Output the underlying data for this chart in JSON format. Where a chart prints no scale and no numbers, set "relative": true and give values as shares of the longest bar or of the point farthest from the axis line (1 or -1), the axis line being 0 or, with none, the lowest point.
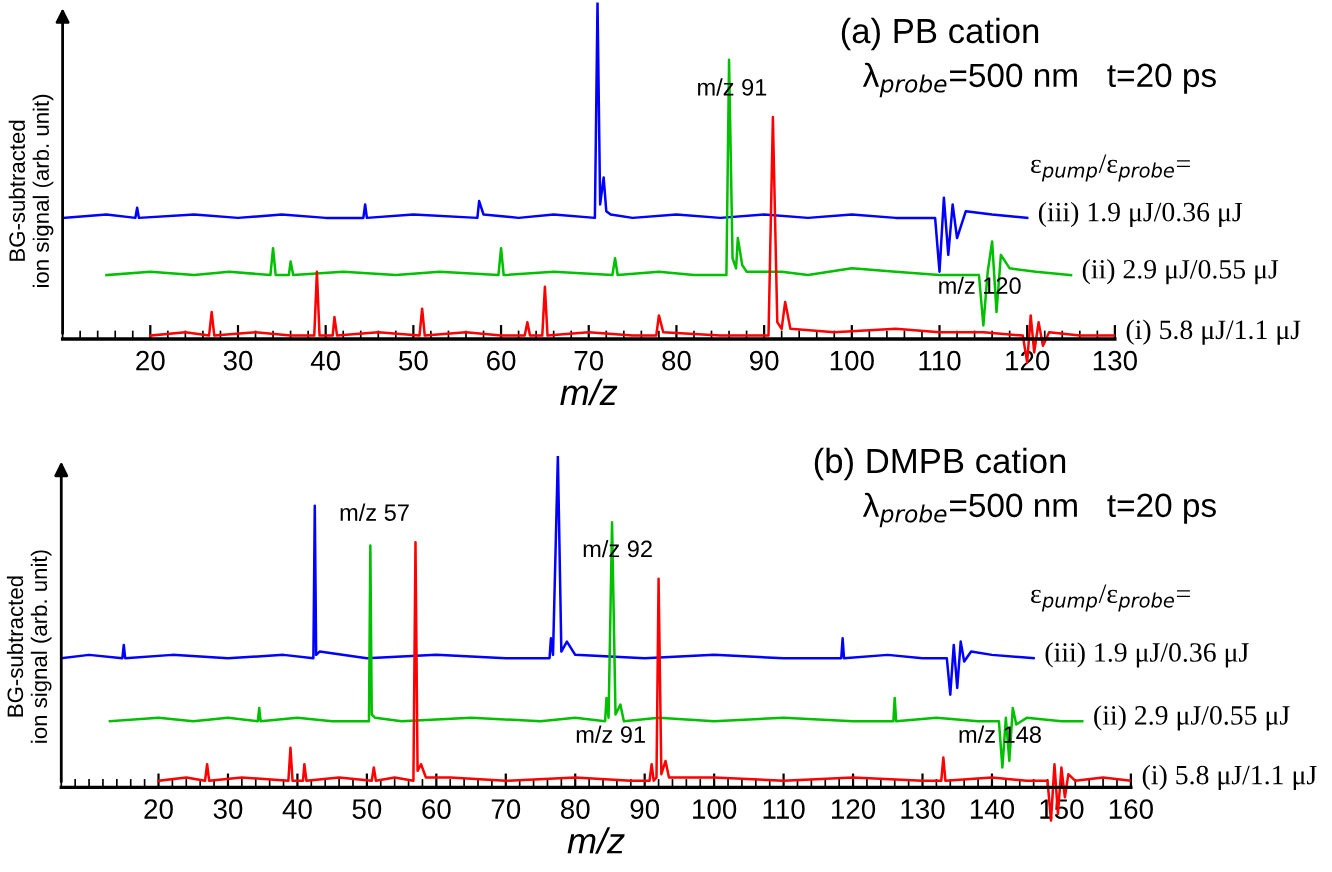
{
  "chart_data": [
    {
      "type": "line",
      "title": "(a) PB cation",
      "xlabel": "m/z",
      "ylabel": "BG-subtracted\nion signal (arb. unit)",
      "relative": true,
      "xlim": [
        10,
        130
      ],
      "xticks": [
        20,
        30,
        40,
        50,
        60,
        70,
        80,
        90,
        100,
        110,
        120,
        130
      ],
      "annotations": [
        "λ$_{probe}$=500 nm   t=20 ps",
        "ε$_{pump}$/ε$_{probe}$=",
        {
          "text": "m/z 91",
          "x": 91,
          "y": 0.66
        },
        {
          "text": "m/z 120",
          "x": 120,
          "y": 0.07
        }
      ],
      "series": [
        {
          "name": "(iii) 1.9 μJ/0.36 μJ",
          "color": "#0000ff",
          "x": [
            10,
            15,
            18.3,
            18.5,
            18.7,
            25,
            30,
            35,
            40,
            44.3,
            44.5,
            44.7,
            50,
            57.3,
            57.5,
            58,
            62,
            66,
            70.7,
            71,
            71.3,
            71.7,
            72,
            72.5,
            75,
            80,
            85,
            90,
            95,
            100,
            105,
            109.5,
            110,
            110.5,
            111,
            111.5,
            112,
            113,
            116,
            120
          ],
          "values": [
            0.36,
            0.37,
            0.36,
            0.39,
            0.36,
            0.37,
            0.36,
            0.37,
            0.36,
            0.36,
            0.4,
            0.36,
            0.37,
            0.36,
            0.41,
            0.37,
            0.36,
            0.37,
            0.36,
            1.0,
            0.4,
            0.48,
            0.38,
            0.37,
            0.36,
            0.37,
            0.36,
            0.37,
            0.36,
            0.37,
            0.36,
            0.36,
            0.2,
            0.42,
            0.25,
            0.4,
            0.3,
            0.38,
            0.37,
            0.36
          ]
        },
        {
          "name": "(ii) 2.9 μJ/0.55 μJ",
          "color": "#00c000",
          "x": [
            15,
            20,
            25,
            29,
            33.7,
            34,
            34.3,
            35.8,
            36,
            36.3,
            42,
            48,
            53,
            59.7,
            60,
            60.3,
            66,
            72.7,
            73,
            73.3,
            78,
            82,
            85.7,
            86,
            86.4,
            86.8,
            87,
            87.5,
            88,
            92,
            95,
            100,
            105,
            110,
            114.5,
            115,
            115.5,
            116,
            116.5,
            117,
            118,
            121,
            125
          ],
          "values": [
            0.19,
            0.2,
            0.19,
            0.2,
            0.19,
            0.27,
            0.19,
            0.19,
            0.23,
            0.19,
            0.2,
            0.19,
            0.2,
            0.19,
            0.27,
            0.19,
            0.2,
            0.19,
            0.24,
            0.19,
            0.2,
            0.19,
            0.19,
            0.83,
            0.24,
            0.21,
            0.3,
            0.22,
            0.2,
            0.2,
            0.19,
            0.21,
            0.2,
            0.19,
            0.19,
            0.04,
            0.2,
            0.29,
            0.08,
            0.25,
            0.21,
            0.2,
            0.19
          ]
        },
        {
          "name": "(i) 5.8 μJ/1.1 μJ",
          "color": "#ff0000",
          "x": [
            20,
            24,
            26.7,
            27,
            27.3,
            32,
            36,
            38.7,
            39,
            39.3,
            40.8,
            41,
            41.3,
            46,
            50.7,
            51,
            51.3,
            56,
            60,
            62.7,
            63,
            63.3,
            64.7,
            65,
            65.3,
            70,
            75,
            77.7,
            78,
            78.5,
            85,
            90.5,
            91,
            91.5,
            92,
            92.4,
            93,
            98,
            105,
            110,
            115,
            119.5,
            120,
            120.4,
            120.8,
            121.3,
            121.8,
            122.5,
            126,
            130
          ],
          "values": [
            0.01,
            0.02,
            0.01,
            0.08,
            0.01,
            0.02,
            0.01,
            0.01,
            0.2,
            0.01,
            0.01,
            0.065,
            0.01,
            0.02,
            0.01,
            0.09,
            0.01,
            0.02,
            0.01,
            0.01,
            0.05,
            0.01,
            0.01,
            0.155,
            0.01,
            0.02,
            0.01,
            0.01,
            0.07,
            0.02,
            0.01,
            0.01,
            0.66,
            0.05,
            0.03,
            0.11,
            0.03,
            0.02,
            0.03,
            0.02,
            0.02,
            0.01,
            -0.07,
            0.07,
            -0.04,
            0.05,
            -0.02,
            0.02,
            0.01,
            0.01
          ]
        }
      ]
    },
    {
      "type": "line",
      "title": "(b) DMPB cation",
      "xlabel": "m/z",
      "ylabel": "BG-subtracted\nion signal (arb. unit)",
      "relative": true,
      "xlim": [
        6,
        160
      ],
      "xticks": [
        20,
        30,
        40,
        50,
        60,
        70,
        80,
        90,
        100,
        110,
        120,
        130,
        140,
        150,
        160
      ],
      "annotations": [
        "λ$_{probe}$=500 nm   t=20 ps",
        "ε$_{pump}$/ε$_{probe}$=",
        {
          "text": "m/z 57",
          "x": 57,
          "y": 0.74
        },
        {
          "text": "m/z 92",
          "x": 92,
          "y": 0.63
        },
        {
          "text": "m/z 91",
          "x": 91,
          "y": 0.07
        },
        {
          "text": "m/z 148",
          "x": 148,
          "y": 0.07
        }
      ],
      "series": [
        {
          "name": "(iii) 1.9 μJ/0.36 μJ",
          "color": "#0000ff",
          "x": [
            6,
            10,
            14.8,
            15,
            15.2,
            22,
            30,
            38,
            42.3,
            42.5,
            42.7,
            43.2,
            50,
            60,
            70,
            76.3,
            76.5,
            76.8,
            77.5,
            78,
            78.8,
            80,
            90,
            100,
            110,
            118.3,
            118.5,
            118.7,
            125,
            130,
            133.5,
            134,
            134.5,
            135,
            135.5,
            136,
            137,
            140,
            146
          ],
          "values": [
            0.39,
            0.4,
            0.39,
            0.43,
            0.39,
            0.4,
            0.39,
            0.4,
            0.39,
            0.85,
            0.4,
            0.41,
            0.39,
            0.4,
            0.39,
            0.39,
            0.45,
            0.4,
            1.0,
            0.41,
            0.44,
            0.4,
            0.39,
            0.4,
            0.39,
            0.39,
            0.45,
            0.39,
            0.4,
            0.39,
            0.39,
            0.28,
            0.43,
            0.3,
            0.44,
            0.38,
            0.41,
            0.4,
            0.39
          ]
        },
        {
          "name": "(ii) 2.9 μJ/0.55 μJ",
          "color": "#00c000",
          "x": [
            13,
            20,
            25,
            30,
            34.3,
            34.5,
            34.7,
            40,
            45,
            50.3,
            50.5,
            50.7,
            51.2,
            55,
            65,
            75,
            80,
            84.3,
            84.5,
            84.8,
            85.3,
            85.8,
            86.5,
            87,
            92,
            100,
            110,
            120,
            125.8,
            126,
            126.2,
            132,
            138,
            141,
            141.5,
            142,
            142.5,
            143,
            143.5,
            145,
            150,
            153
          ],
          "values": [
            0.2,
            0.21,
            0.2,
            0.21,
            0.2,
            0.24,
            0.2,
            0.21,
            0.2,
            0.2,
            0.73,
            0.22,
            0.21,
            0.2,
            0.21,
            0.2,
            0.21,
            0.2,
            0.27,
            0.21,
            0.8,
            0.22,
            0.25,
            0.2,
            0.21,
            0.2,
            0.21,
            0.2,
            0.2,
            0.27,
            0.2,
            0.21,
            0.2,
            0.2,
            0.06,
            0.21,
            0.08,
            0.24,
            0.19,
            0.21,
            0.2,
            0.2
          ]
        },
        {
          "name": "(i) 5.8 μJ/1.1 μJ",
          "color": "#ff0000",
          "x": [
            20,
            24,
            26.7,
            27,
            27.3,
            32,
            38.7,
            39,
            39.3,
            40.8,
            41,
            41.3,
            46,
            50.7,
            51,
            51.3,
            54,
            56.7,
            57,
            57.3,
            57.8,
            58.5,
            62,
            70,
            80,
            88,
            90.7,
            91,
            91.3,
            91.7,
            92,
            92.4,
            93,
            93.5,
            100,
            110,
            120,
            130,
            132.7,
            133,
            133.3,
            140,
            145,
            148,
            148.5,
            149,
            149.5,
            150,
            150.5,
            151,
            152,
            156,
            160
          ],
          "values": [
            0.02,
            0.03,
            0.02,
            0.07,
            0.02,
            0.03,
            0.02,
            0.12,
            0.02,
            0.02,
            0.07,
            0.02,
            0.03,
            0.02,
            0.06,
            0.02,
            0.03,
            0.02,
            0.74,
            0.05,
            0.07,
            0.03,
            0.03,
            0.02,
            0.03,
            0.02,
            0.02,
            0.07,
            0.02,
            0.03,
            0.63,
            0.04,
            0.08,
            0.03,
            0.03,
            0.02,
            0.03,
            0.02,
            0.02,
            0.09,
            0.02,
            0.03,
            0.02,
            0.02,
            -0.1,
            0.07,
            -0.08,
            0.06,
            -0.03,
            0.04,
            0.02,
            0.03,
            0.02
          ]
        }
      ]
    }
  ]
}
